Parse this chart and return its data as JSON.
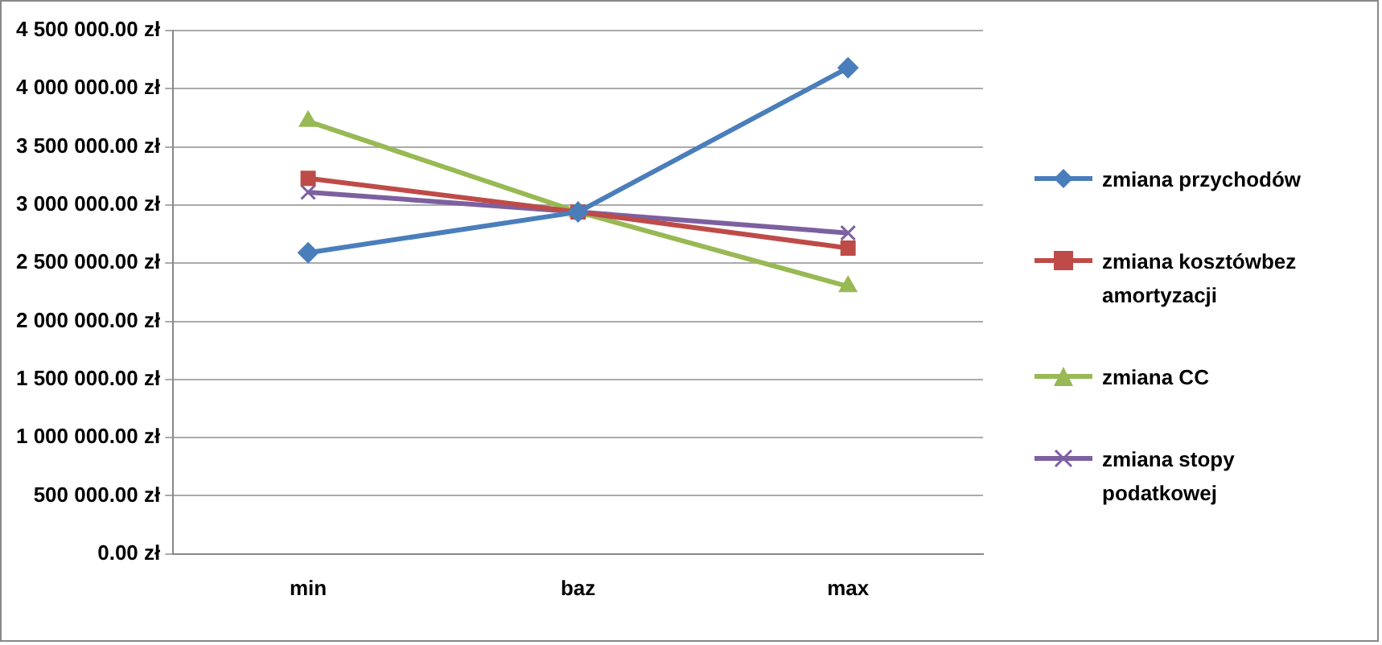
{
  "chart_data": {
    "type": "line",
    "categories": [
      "min",
      "baz",
      "max"
    ],
    "series": [
      {
        "name": "zmiana przychodów",
        "color": "#4a7ebb",
        "marker": "diamond",
        "values": [
          2590000,
          2940000,
          4180000
        ]
      },
      {
        "name": "zmiana kosztówbez amortyzacji",
        "color": "#be4b48",
        "marker": "square",
        "values": [
          3230000,
          2940000,
          2630000
        ]
      },
      {
        "name": "zmiana CC",
        "color": "#98b954",
        "marker": "triangle",
        "values": [
          3720000,
          2940000,
          2300000
        ]
      },
      {
        "name": "zmiana stopy podatkowej",
        "color": "#7d60a0",
        "marker": "cross",
        "values": [
          3110000,
          2940000,
          2760000
        ]
      }
    ],
    "ylim": [
      0,
      4500000
    ],
    "yticks": [
      {
        "value": 0,
        "label": "0.00 zł"
      },
      {
        "value": 500000,
        "label": "500 000.00 zł"
      },
      {
        "value": 1000000,
        "label": "1 000 000.00 zł"
      },
      {
        "value": 1500000,
        "label": "1 500 000.00 zł"
      },
      {
        "value": 2000000,
        "label": "2 000 000.00 zł"
      },
      {
        "value": 2500000,
        "label": "2 500 000.00 zł"
      },
      {
        "value": 3000000,
        "label": "3 000 000.00 zł"
      },
      {
        "value": 3500000,
        "label": "3 500 000.00 zł"
      },
      {
        "value": 4000000,
        "label": "4 000 000.00 zł"
      },
      {
        "value": 4500000,
        "label": "4 500 000.00 zł"
      }
    ],
    "grid": "y",
    "legend": "right",
    "line_style": "solid"
  }
}
